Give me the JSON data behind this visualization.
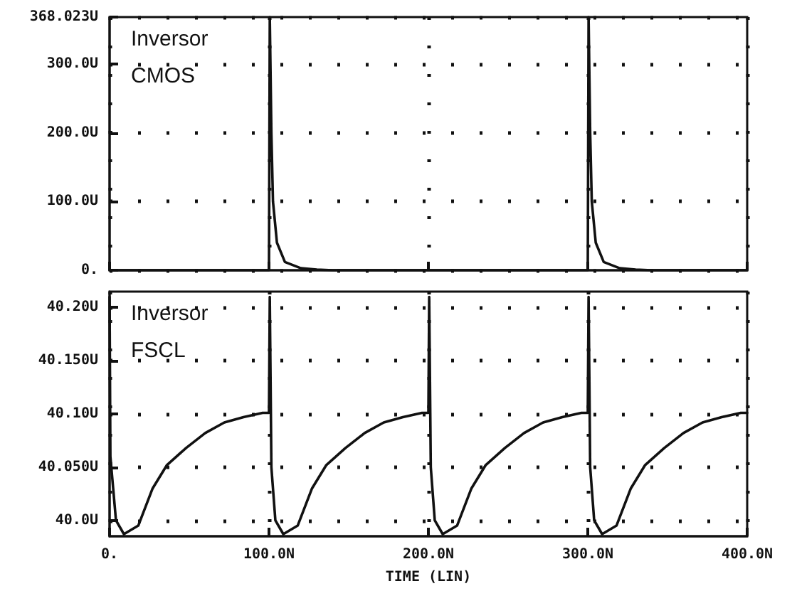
{
  "chart_data": [
    {
      "type": "line",
      "annotations": [
        "Inversor",
        "CMOS"
      ],
      "x": [
        0,
        99,
        100,
        100.5,
        101.5,
        102.5,
        105,
        110,
        120,
        130,
        140,
        299,
        300,
        300.5,
        301.5,
        302.5,
        305,
        310,
        320,
        330,
        340,
        400
      ],
      "series": [
        {
          "color": "#111111",
          "values": [
            0,
            0,
            0,
            368.023,
            200,
            100,
            40,
            12,
            3,
            1,
            0,
            0,
            0,
            368.023,
            200,
            100,
            40,
            12,
            3,
            1,
            0,
            0
          ]
        }
      ],
      "xlim": [
        0,
        400
      ],
      "xticks": [
        0,
        100,
        200,
        300,
        400
      ],
      "ylim": [
        0,
        368.023
      ],
      "yticks": [
        {
          "value": 0,
          "label": "0."
        },
        {
          "value": 100,
          "label": "100.0U"
        },
        {
          "value": 200,
          "label": "200.0U"
        },
        {
          "value": 300,
          "label": "300.0U"
        },
        {
          "value": 368.023,
          "label": "368.023U"
        }
      ],
      "tick_labels": "y",
      "grid": true,
      "marker": "none",
      "line_style": "solid"
    },
    {
      "type": "line",
      "annotations": [
        "Inversor",
        "FSCL"
      ],
      "xlabel": "TIME (LIN)",
      "x": [
        0,
        0.5,
        4,
        9,
        18,
        27,
        36,
        48,
        60,
        72,
        84,
        96,
        100,
        100.5,
        101.5,
        104,
        109,
        118,
        127,
        136,
        148,
        160,
        172,
        184,
        196,
        200,
        200.5,
        201.5,
        204,
        209,
        218,
        227,
        236,
        248,
        260,
        272,
        284,
        296,
        300,
        300.5,
        301.5,
        304,
        309,
        318,
        327,
        336,
        348,
        360,
        372,
        384,
        396,
        400
      ],
      "series": [
        {
          "color": "#111111",
          "values": [
            40.21,
            40.06,
            40.0,
            39.987,
            39.995,
            40.03,
            40.052,
            40.068,
            40.082,
            40.092,
            40.097,
            40.101,
            40.101,
            40.21,
            40.05,
            40.0,
            39.987,
            39.995,
            40.03,
            40.052,
            40.068,
            40.082,
            40.092,
            40.097,
            40.101,
            40.101,
            40.21,
            40.05,
            40.0,
            39.987,
            39.995,
            40.03,
            40.052,
            40.068,
            40.082,
            40.092,
            40.097,
            40.101,
            40.101,
            40.21,
            40.05,
            40.0,
            39.987,
            39.995,
            40.03,
            40.052,
            40.068,
            40.082,
            40.092,
            40.097,
            40.101,
            40.101
          ]
        }
      ],
      "xlim": [
        0,
        400
      ],
      "xticks": [
        {
          "value": 0,
          "label": "0."
        },
        {
          "value": 100,
          "label": "100.0N"
        },
        {
          "value": 200,
          "label": "200.0N"
        },
        {
          "value": 300,
          "label": "300.0N"
        },
        {
          "value": 400,
          "label": "400.0N"
        }
      ],
      "ylim": [
        39.985,
        40.215
      ],
      "yticks": [
        {
          "value": 40.0,
          "label": "40.0U"
        },
        {
          "value": 40.05,
          "label": "40.050U"
        },
        {
          "value": 40.1,
          "label": "40.10U"
        },
        {
          "value": 40.15,
          "label": "40.150U"
        },
        {
          "value": 40.2,
          "label": "40.20U"
        }
      ],
      "grid": true,
      "marker": "none",
      "line_style": "solid"
    }
  ]
}
